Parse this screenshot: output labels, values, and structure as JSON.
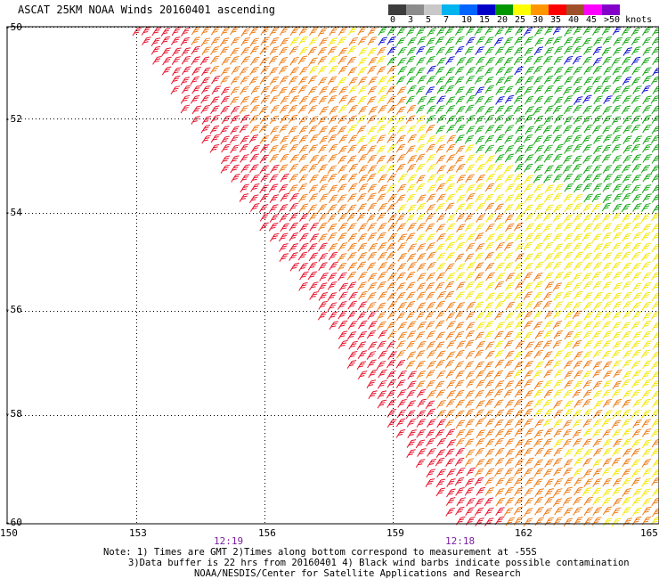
{
  "header": {
    "title": "ASCAT 25KM NOAA Winds 20160401 ascending"
  },
  "legend": {
    "bins": [
      {
        "label": "0",
        "color": "#3c3c3c"
      },
      {
        "label": "3",
        "color": "#8c8c8c"
      },
      {
        "label": "5",
        "color": "#c8c8c8"
      },
      {
        "label": "7",
        "color": "#00b4f0"
      },
      {
        "label": "10",
        "color": "#0064ff"
      },
      {
        "label": "15",
        "color": "#0000c8"
      },
      {
        "label": "20",
        "color": "#009600"
      },
      {
        "label": "25",
        "color": "#ffff00"
      },
      {
        "label": "30",
        "color": "#ff9600"
      },
      {
        "label": "35",
        "color": "#ff0000"
      },
      {
        "label": "40",
        "color": "#a05028"
      },
      {
        "label": "45",
        "color": "#ff00ff"
      },
      {
        "label": ">50 knots",
        "color": "#8200c8"
      }
    ]
  },
  "map": {
    "lon_ticks": [
      "150",
      "153",
      "156",
      "159",
      "162",
      "165"
    ],
    "lat_ticks": [
      "-50",
      "-52",
      "-54",
      "-56",
      "-58",
      "-60"
    ],
    "times": [
      {
        "label": "12:19",
        "lon": 155
      },
      {
        "label": "12:18",
        "lon": 160.5
      }
    ],
    "swath_zones": [
      {
        "name": "red",
        "color": "#e8102a"
      },
      {
        "name": "orange",
        "color": "#f07a10"
      },
      {
        "name": "yellow",
        "color": "#f5e800"
      },
      {
        "name": "green",
        "color": "#10a810"
      },
      {
        "name": "blue",
        "color": "#1010d0"
      }
    ]
  },
  "notes": {
    "line1": "Note: 1) Times are GMT 2)Times along bottom correspond to measurement at -55S",
    "line2": "3)Data buffer is 22 hrs from 20160401 4) Black wind barbs indicate possible contamination",
    "line3": "NOAA/NESDIS/Center for Satellite Applications and Research"
  }
}
